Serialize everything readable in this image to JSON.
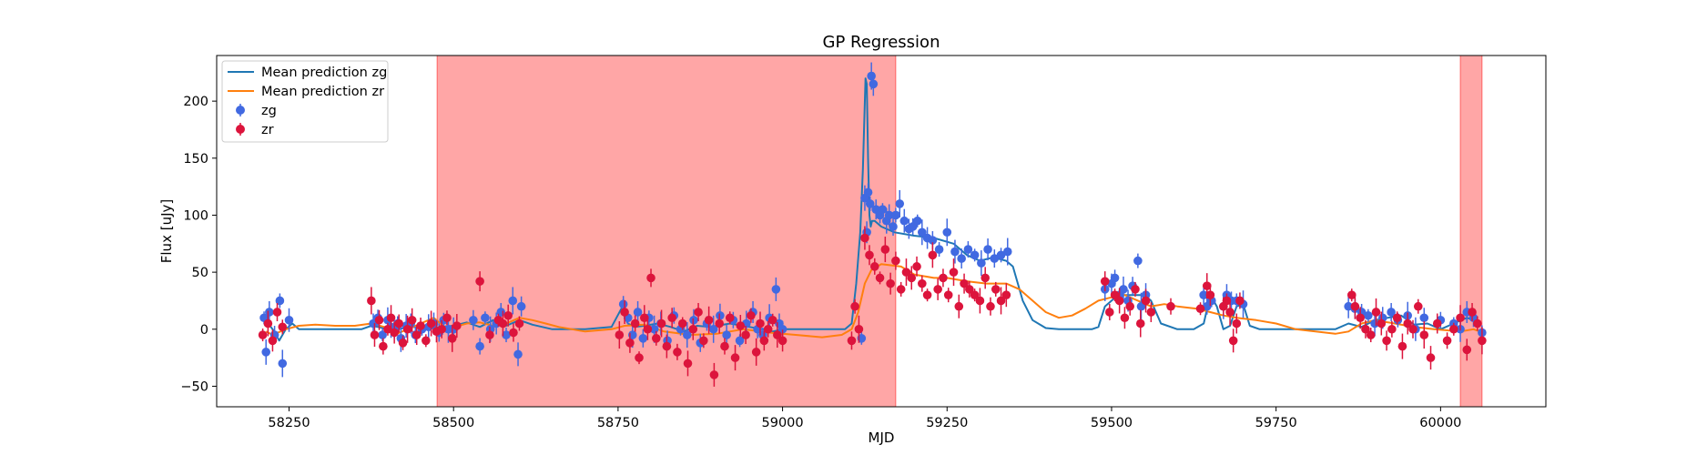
{
  "chart_data": {
    "type": "scatter",
    "title": "GP Regression",
    "xlabel": "MJD",
    "ylabel": "Flux [uJy]",
    "xlim": [
      58140,
      60160
    ],
    "ylim": [
      -68,
      240
    ],
    "xticks": [
      58250,
      58500,
      58750,
      59000,
      59250,
      59500,
      59750,
      60000
    ],
    "yticks": [
      -50,
      0,
      50,
      100,
      150,
      200
    ],
    "grid": false,
    "legend_position": "top-left",
    "shaded_regions": [
      {
        "x0": 58475,
        "x1": 59172,
        "color": "#ff0000",
        "opacity": 0.35
      },
      {
        "x0": 60030,
        "x1": 60063,
        "color": "#ff0000",
        "opacity": 0.35
      }
    ],
    "lines": [
      {
        "name": "Mean prediction zg",
        "color": "#1f77b4",
        "x": [
          58215,
          58225,
          58235,
          58245,
          58255,
          58265,
          58290,
          58330,
          58360,
          58375,
          58385,
          58400,
          58415,
          58425,
          58440,
          58460,
          58480,
          58500,
          58520,
          58540,
          58560,
          58580,
          58600,
          58620,
          58650,
          58700,
          58740,
          58755,
          58765,
          58775,
          58790,
          58810,
          58830,
          58850,
          58870,
          58890,
          58920,
          58950,
          58970,
          58985,
          59000,
          59050,
          59080,
          59095,
          59105,
          59112,
          59118,
          59122,
          59126,
          59128,
          59130,
          59132,
          59134,
          59136,
          59140,
          59150,
          59170,
          59200,
          59230,
          59260,
          59280,
          59300,
          59320,
          59340,
          59350,
          59365,
          59380,
          59400,
          59420,
          59450,
          59470,
          59480,
          59490,
          59500,
          59510,
          59530,
          59550,
          59560,
          59575,
          59600,
          59625,
          59640,
          59650,
          59660,
          59670,
          59680,
          59690,
          59700,
          59710,
          59725,
          59750,
          59800,
          59840,
          59860,
          59880,
          59900,
          59920,
          59940,
          59960,
          59980,
          60000,
          60020,
          60040,
          60050,
          60060
        ],
        "y": [
          8,
          0,
          -10,
          0,
          5,
          0,
          0,
          0,
          0,
          3,
          2,
          0,
          0,
          1,
          2,
          0,
          2,
          3,
          6,
          2,
          8,
          3,
          8,
          4,
          0,
          0,
          2,
          18,
          5,
          2,
          3,
          5,
          2,
          -2,
          3,
          2,
          5,
          2,
          0,
          -2,
          0,
          0,
          0,
          0,
          5,
          40,
          85,
          140,
          220,
          215,
          150,
          100,
          90,
          95,
          95,
          90,
          85,
          82,
          80,
          75,
          65,
          60,
          63,
          60,
          55,
          25,
          8,
          1,
          0,
          0,
          0,
          2,
          20,
          25,
          30,
          30,
          30,
          25,
          5,
          0,
          0,
          5,
          30,
          20,
          0,
          3,
          20,
          22,
          3,
          0,
          0,
          0,
          0,
          5,
          2,
          8,
          10,
          12,
          4,
          5,
          0,
          5,
          10,
          8,
          5
        ]
      },
      {
        "name": "Mean prediction zr",
        "color": "#ff7f0e",
        "x": [
          58215,
          58225,
          58245,
          58265,
          58290,
          58320,
          58350,
          58375,
          58395,
          58410,
          58430,
          58450,
          58470,
          58490,
          58520,
          58540,
          58560,
          58580,
          58600,
          58620,
          58640,
          58660,
          58700,
          58740,
          58760,
          58790,
          58820,
          58860,
          58900,
          58940,
          58980,
          59020,
          59060,
          59090,
          59105,
          59115,
          59125,
          59135,
          59150,
          59180,
          59200,
          59230,
          59250,
          59280,
          59310,
          59340,
          59360,
          59380,
          59400,
          59420,
          59440,
          59460,
          59480,
          59500,
          59520,
          59540,
          59560,
          59580,
          59600,
          59630,
          59650,
          59670,
          59690,
          59720,
          59750,
          59780,
          59810,
          59840,
          59860,
          59880,
          59900,
          59930,
          59960,
          59990,
          60010,
          60030,
          60050,
          60060
        ],
        "y": [
          -2,
          -5,
          0,
          3,
          4,
          3,
          3,
          5,
          2,
          -5,
          0,
          5,
          10,
          0,
          5,
          6,
          3,
          5,
          10,
          8,
          5,
          2,
          -2,
          0,
          3,
          4,
          -2,
          -5,
          -4,
          0,
          -3,
          -5,
          -7,
          -5,
          0,
          15,
          40,
          52,
          57,
          55,
          48,
          45,
          45,
          42,
          40,
          40,
          35,
          25,
          15,
          10,
          12,
          18,
          25,
          28,
          30,
          25,
          20,
          22,
          20,
          18,
          15,
          12,
          10,
          8,
          5,
          0,
          -2,
          -4,
          -2,
          5,
          8,
          5,
          2,
          0,
          -1,
          -2,
          0,
          -2
        ]
      }
    ],
    "series": [
      {
        "name": "zg",
        "color": "#4169e1",
        "x": [
          58212,
          58215,
          58220,
          58228,
          58236,
          58240,
          58250,
          58378,
          58385,
          58392,
          58400,
          58405,
          58410,
          58415,
          58420,
          58428,
          58435,
          58442,
          58452,
          58462,
          58470,
          58478,
          58485,
          58492,
          58500,
          58530,
          58540,
          58548,
          58556,
          58565,
          58572,
          58580,
          58590,
          58598,
          58603,
          58758,
          58765,
          58772,
          58780,
          58788,
          58797,
          58805,
          58815,
          58825,
          58835,
          58845,
          58855,
          58865,
          58875,
          58885,
          58895,
          58905,
          58915,
          58925,
          58935,
          58945,
          58955,
          58962,
          58970,
          58980,
          58990,
          58995,
          59000,
          59120,
          59125,
          59128,
          59130,
          59133,
          59135,
          59138,
          59142,
          59148,
          59152,
          59158,
          59162,
          59168,
          59172,
          59178,
          59185,
          59192,
          59198,
          59205,
          59212,
          59220,
          59228,
          59238,
          59250,
          59262,
          59272,
          59282,
          59292,
          59302,
          59312,
          59322,
          59332,
          59342,
          59490,
          59500,
          59505,
          59512,
          59518,
          59525,
          59532,
          59540,
          59545,
          59552,
          59640,
          59645,
          59652,
          59670,
          59675,
          59682,
          59690,
          59700,
          59860,
          59870,
          59880,
          59890,
          59900,
          59912,
          59925,
          59935,
          59950,
          59962,
          59975,
          60000,
          60020,
          60030,
          60040,
          60050,
          60063
        ],
        "y": [
          10,
          -20,
          15,
          -5,
          25,
          -30,
          8,
          5,
          10,
          -5,
          8,
          2,
          0,
          5,
          -8,
          3,
          5,
          -5,
          0,
          2,
          5,
          -3,
          8,
          0,
          0,
          8,
          -15,
          10,
          0,
          5,
          15,
          -5,
          25,
          -22,
          20,
          22,
          10,
          -5,
          15,
          -8,
          10,
          0,
          5,
          -10,
          12,
          0,
          -5,
          8,
          -12,
          5,
          0,
          12,
          -5,
          8,
          -10,
          5,
          15,
          0,
          -5,
          10,
          35,
          5,
          0,
          -8,
          115,
          85,
          120,
          110,
          222,
          215,
          105,
          100,
          105,
          95,
          100,
          90,
          100,
          110,
          95,
          88,
          90,
          95,
          85,
          80,
          78,
          70,
          85,
          68,
          62,
          70,
          65,
          58,
          70,
          62,
          65,
          68,
          35,
          40,
          45,
          30,
          35,
          25,
          38,
          60,
          20,
          30,
          30,
          20,
          25,
          20,
          30,
          25,
          25,
          22,
          20,
          18,
          15,
          12,
          5,
          10,
          15,
          8,
          12,
          0,
          10,
          8,
          5,
          0,
          15,
          10,
          -3
        ]
      },
      {
        "name": "zr",
        "color": "#dc143c",
        "x": [
          58210,
          58218,
          58225,
          58232,
          58240,
          58375,
          58380,
          58387,
          58393,
          58400,
          58405,
          58410,
          58417,
          58423,
          58430,
          58437,
          58444,
          58450,
          58458,
          58466,
          58474,
          58482,
          58490,
          58498,
          58505,
          58540,
          58555,
          58568,
          58575,
          58583,
          58591,
          58600,
          58752,
          58760,
          58768,
          58776,
          58782,
          58790,
          58795,
          58800,
          58808,
          58816,
          58824,
          58832,
          58840,
          58848,
          58856,
          58864,
          58872,
          58880,
          58888,
          58896,
          58904,
          58912,
          58920,
          58928,
          58936,
          58944,
          58952,
          58960,
          58966,
          58972,
          58978,
          58985,
          58992,
          59000,
          59105,
          59110,
          59116,
          59125,
          59132,
          59140,
          59148,
          59156,
          59164,
          59172,
          59180,
          59188,
          59196,
          59204,
          59212,
          59220,
          59228,
          59236,
          59244,
          59252,
          59260,
          59268,
          59276,
          59284,
          59292,
          59300,
          59308,
          59316,
          59324,
          59332,
          59340,
          59490,
          59497,
          59505,
          59512,
          59520,
          59528,
          59536,
          59544,
          59552,
          59560,
          59590,
          59635,
          59645,
          59650,
          59670,
          59675,
          59680,
          59685,
          59690,
          59695,
          59865,
          59870,
          59878,
          59886,
          59894,
          59902,
          59910,
          59918,
          59926,
          59934,
          59942,
          59950,
          59958,
          59966,
          59975,
          59985,
          59995,
          60010,
          60020,
          60030,
          60040,
          60048,
          60056,
          60063
        ],
        "y": [
          -5,
          5,
          -10,
          15,
          2,
          25,
          -5,
          8,
          -15,
          0,
          10,
          -3,
          5,
          -12,
          0,
          8,
          -5,
          3,
          -10,
          5,
          -2,
          0,
          10,
          -8,
          3,
          42,
          -5,
          8,
          5,
          12,
          -3,
          5,
          -5,
          15,
          -12,
          5,
          -25,
          10,
          0,
          45,
          -8,
          5,
          -15,
          10,
          -20,
          5,
          -30,
          0,
          15,
          -10,
          8,
          -40,
          5,
          -15,
          10,
          -25,
          3,
          -5,
          12,
          -20,
          5,
          -10,
          0,
          8,
          -5,
          -10,
          -10,
          20,
          0,
          80,
          65,
          55,
          45,
          70,
          40,
          60,
          35,
          50,
          45,
          55,
          40,
          30,
          65,
          35,
          45,
          30,
          50,
          20,
          40,
          35,
          30,
          25,
          45,
          20,
          35,
          25,
          30,
          42,
          15,
          30,
          25,
          10,
          20,
          35,
          5,
          25,
          15,
          20,
          18,
          38,
          30,
          20,
          25,
          15,
          -10,
          5,
          25,
          30,
          20,
          10,
          0,
          -5,
          15,
          5,
          -10,
          0,
          10,
          -15,
          5,
          0,
          20,
          -5,
          -25,
          5,
          -10,
          0,
          10,
          -18,
          15,
          5,
          -10
        ]
      }
    ]
  }
}
